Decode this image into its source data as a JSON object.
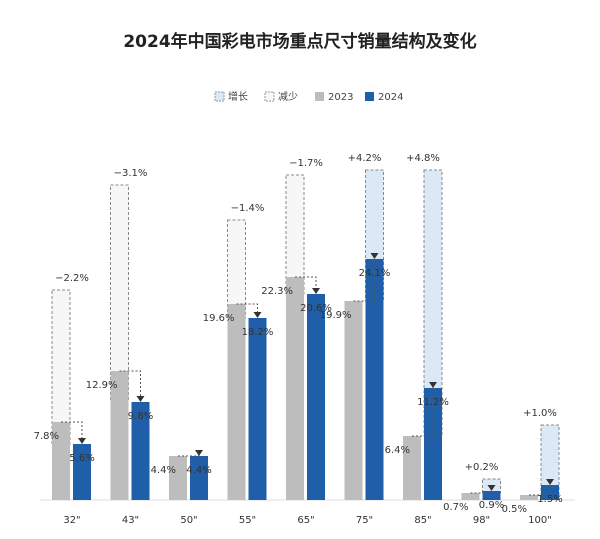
{
  "chart_data": {
    "type": "bar",
    "title": "2024年中国彩电市场重点尺寸销量结构及变化",
    "categories": [
      "32\"",
      "43\"",
      "50\"",
      "55\"",
      "65\"",
      "75\"",
      "85\"",
      "98\"",
      "100\""
    ],
    "series": [
      {
        "name": "2023",
        "color": "#bdbdbd",
        "values": [
          7.8,
          12.9,
          4.4,
          19.6,
          22.3,
          19.9,
          6.4,
          0.7,
          0.5
        ],
        "value_labels": [
          "7.8%",
          "12.9%",
          "4.4%",
          "19.6%",
          "22.3%",
          "19.9%",
          "6.4%",
          "0.7%",
          "0.5%"
        ]
      },
      {
        "name": "2024",
        "color": "#1f5ea8",
        "values": [
          5.6,
          9.8,
          4.4,
          18.2,
          20.6,
          24.1,
          11.2,
          0.9,
          1.5
        ],
        "value_labels": [
          "5.6%",
          "9.8%",
          "4.4%",
          "18.2%",
          "20.6%",
          "24.1%",
          "11.2%",
          "0.9%",
          "1.5%"
        ]
      }
    ],
    "changes": {
      "values": [
        -2.2,
        -3.1,
        null,
        -1.4,
        -1.7,
        4.2,
        4.8,
        0.2,
        1.0
      ],
      "value_labels": [
        "−2.2%",
        "−3.1%",
        null,
        "−1.4%",
        "−1.7%",
        "+4.2%",
        "+4.8%",
        "+0.2%",
        "+1.0%"
      ]
    },
    "change_legend": [
      {
        "name": "增长",
        "color": "#dbe8f5"
      },
      {
        "name": "减少",
        "color": "#f7f7f7"
      }
    ]
  }
}
